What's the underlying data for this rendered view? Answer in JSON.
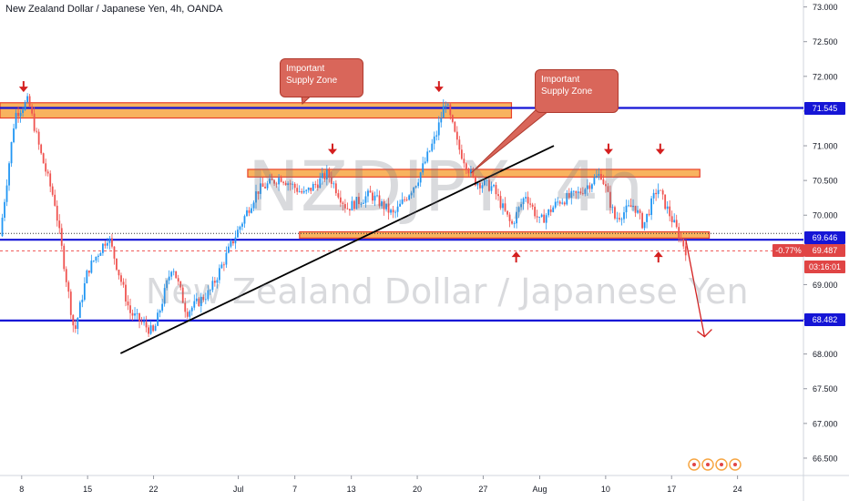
{
  "title": "New Zealand Dollar / Japanese Yen, 4h, OANDA",
  "watermark": {
    "symbol": "NZDJPY, 4h",
    "name": "New Zealand Dollar / Japanese Yen"
  },
  "callouts": [
    {
      "text": "Important\nSupply Zone"
    },
    {
      "text": "Important\nSupply Zone"
    }
  ],
  "price_tags": {
    "upper_line": {
      "text": "71.545",
      "color": "#1515d6"
    },
    "current": {
      "text": "69.646",
      "color": "#1515d6"
    },
    "change": {
      "text": "-0.77%",
      "color": "#e04545"
    },
    "last": {
      "text": "69.487",
      "color": "#e04545"
    },
    "timer": {
      "text": "03:16:01",
      "color": "#e04545"
    },
    "lower_line": {
      "text": "68.482",
      "color": "#1515d6"
    }
  },
  "colors": {
    "up": "#2196f3",
    "down": "#ef5350",
    "zone_fill": "#f7a643",
    "zone_border": "#e8412b",
    "line": "#1515d6",
    "arrow": "#d41f1f",
    "trend": "#000000"
  },
  "chart_data": {
    "type": "candlestick",
    "title": "New Zealand Dollar / Japanese Yen, 4h, OANDA",
    "y_ticks": [
      "66.500",
      "67.000",
      "67.500",
      "68.000",
      "68.500",
      "69.000",
      "69.500",
      "70.000",
      "70.500",
      "71.000",
      "71.500",
      "72.000",
      "72.500",
      "73.000"
    ],
    "ylim": [
      66.25,
      73.1
    ],
    "x_ticks": [
      "8",
      "15",
      "22",
      "Jul",
      "7",
      "13",
      "20",
      "27",
      "Aug",
      "10",
      "17",
      "24"
    ],
    "x_tick_days": [
      8,
      15,
      22,
      31,
      37,
      43,
      50,
      57,
      63,
      70,
      77,
      84
    ],
    "xlim": [
      5.7,
      91.0
    ],
    "horizontal_lines": [
      71.545,
      69.646,
      68.482
    ],
    "current_price": 69.487,
    "zones": [
      {
        "label": "Important Supply Zone",
        "from_day": 5.7,
        "to_day": 60.0,
        "low": 71.4,
        "high": 71.62
      },
      {
        "from_day": 32.0,
        "to_day": 80.0,
        "low": 70.55,
        "high": 70.66
      },
      {
        "from_day": 37.5,
        "to_day": 81.0,
        "low": 69.67,
        "high": 69.76
      }
    ],
    "trendline": [
      {
        "day": 18.5,
        "price": 68.01
      },
      {
        "day": 64.5,
        "price": 71.0
      }
    ],
    "down_arrow_days_prices": [
      [
        8.2,
        71.8
      ],
      [
        41.0,
        70.9
      ],
      [
        52.3,
        71.8
      ],
      [
        70.3,
        70.9
      ],
      [
        75.8,
        70.9
      ]
    ],
    "up_arrow_days_prices": [
      [
        60.5,
        69.45
      ],
      [
        75.6,
        69.45
      ]
    ],
    "projection_arrow": [
      {
        "day": 78.5,
        "price": 69.65
      },
      {
        "day": 80.5,
        "price": 68.25
      }
    ],
    "key_points": [
      {
        "day": 5.7,
        "price": 69.7
      },
      {
        "day": 7.3,
        "price": 71.45
      },
      {
        "day": 8.7,
        "price": 71.65
      },
      {
        "day": 10.0,
        "price": 70.9
      },
      {
        "day": 11.5,
        "price": 70.2
      },
      {
        "day": 13.6,
        "price": 68.3
      },
      {
        "day": 15.0,
        "price": 69.2
      },
      {
        "day": 17.2,
        "price": 69.7
      },
      {
        "day": 19.5,
        "price": 68.6
      },
      {
        "day": 22.0,
        "price": 68.3
      },
      {
        "day": 24.0,
        "price": 69.3
      },
      {
        "day": 25.5,
        "price": 68.6
      },
      {
        "day": 28.0,
        "price": 68.9
      },
      {
        "day": 30.5,
        "price": 69.65
      },
      {
        "day": 33.0,
        "price": 70.35
      },
      {
        "day": 35.5,
        "price": 70.55
      },
      {
        "day": 38.0,
        "price": 70.3
      },
      {
        "day": 40.5,
        "price": 70.6
      },
      {
        "day": 42.5,
        "price": 70.1
      },
      {
        "day": 45.0,
        "price": 70.3
      },
      {
        "day": 47.5,
        "price": 70.0
      },
      {
        "day": 50.0,
        "price": 70.5
      },
      {
        "day": 52.0,
        "price": 71.15
      },
      {
        "day": 53.0,
        "price": 71.65
      },
      {
        "day": 54.3,
        "price": 71.0
      },
      {
        "day": 56.0,
        "price": 70.5
      },
      {
        "day": 58.0,
        "price": 70.4
      },
      {
        "day": 60.0,
        "price": 69.85
      },
      {
        "day": 61.5,
        "price": 70.3
      },
      {
        "day": 63.0,
        "price": 69.9
      },
      {
        "day": 65.0,
        "price": 70.2
      },
      {
        "day": 67.0,
        "price": 70.3
      },
      {
        "day": 69.5,
        "price": 70.6
      },
      {
        "day": 71.0,
        "price": 69.95
      },
      {
        "day": 73.0,
        "price": 70.15
      },
      {
        "day": 74.0,
        "price": 69.85
      },
      {
        "day": 75.5,
        "price": 70.4
      },
      {
        "day": 77.0,
        "price": 69.95
      },
      {
        "day": 78.5,
        "price": 69.5
      }
    ]
  }
}
